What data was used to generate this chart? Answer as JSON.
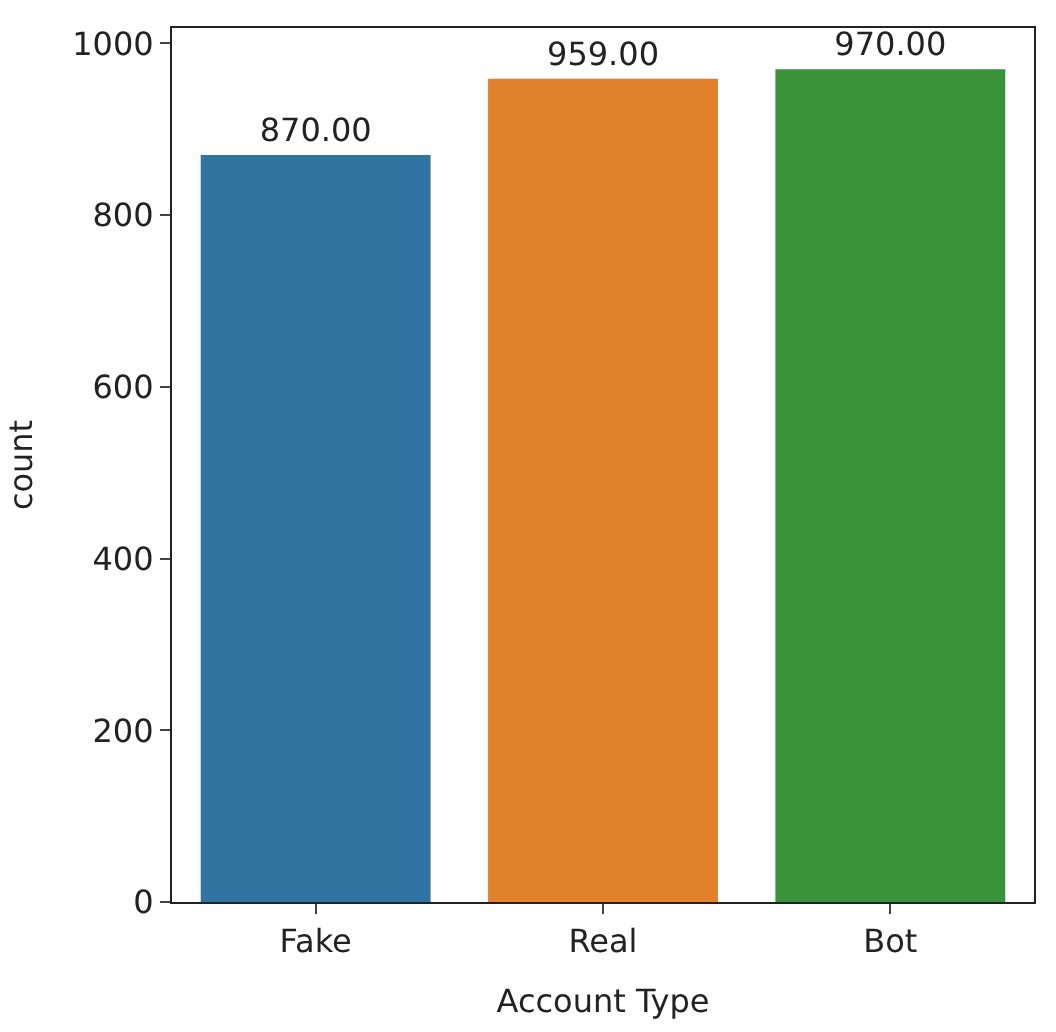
{
  "chart_data": {
    "type": "bar",
    "xlabel": "Account Type",
    "ylabel": "count",
    "categories": [
      "Fake",
      "Real",
      "Bot"
    ],
    "values": [
      870,
      959,
      970
    ],
    "value_labels": [
      "870.00",
      "959.00",
      "970.00"
    ],
    "colors": [
      "#3274a1",
      "#e1812c",
      "#3a923a"
    ],
    "ylim": [
      0,
      1018
    ],
    "yticks": [
      0,
      200,
      400,
      600,
      800,
      1000
    ]
  }
}
